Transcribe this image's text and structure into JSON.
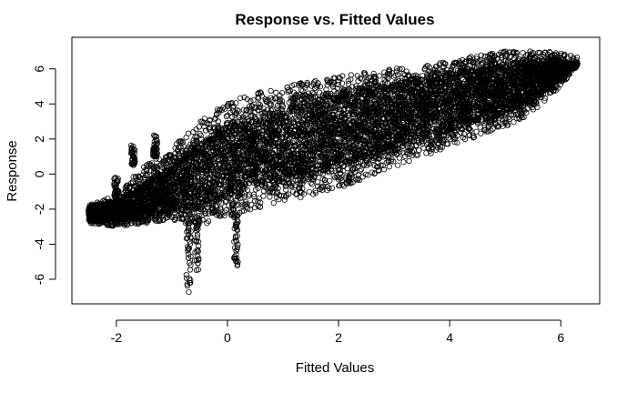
{
  "chart_data": {
    "type": "scatter",
    "title": "Response vs. Fitted Values",
    "xlabel": "Fitted Values",
    "ylabel": "Response",
    "xlim": [
      -2.8,
      6.7
    ],
    "ylim": [
      -7.4,
      7.8
    ],
    "x_ticks": [
      -2,
      0,
      2,
      4,
      6
    ],
    "y_ticks": [
      -6,
      -4,
      -2,
      0,
      2,
      4,
      6
    ],
    "x_tick_labels": [
      "-2",
      "0",
      "2",
      "4",
      "6"
    ],
    "y_tick_labels": [
      "-6",
      "-4",
      "-2",
      "0",
      "2",
      "4",
      "6"
    ],
    "marker": "open-circle",
    "marker_color": "#000000",
    "grid": false,
    "legend": "none",
    "envelope": {
      "x": [
        -2.5,
        -2.0,
        -1.5,
        -1.0,
        -0.5,
        0.0,
        0.5,
        1.0,
        2.0,
        3.0,
        4.0,
        5.0,
        5.5,
        6.0,
        6.3
      ],
      "upper": [
        -1.8,
        -1.2,
        0.5,
        1.5,
        3.0,
        4.2,
        4.6,
        5.0,
        5.6,
        6.0,
        6.5,
        7.0,
        7.1,
        6.9,
        6.7
      ],
      "lower": [
        -2.8,
        -3.0,
        -2.8,
        -2.6,
        -3.0,
        -2.4,
        -2.0,
        -1.6,
        -0.8,
        0.3,
        1.6,
        2.7,
        3.5,
        5.0,
        6.2
      ],
      "core_upper": [
        -2.0,
        -1.6,
        -0.6,
        0.5,
        1.6,
        2.6,
        3.0,
        3.6,
        4.4,
        5.0,
        5.6,
        6.1,
        6.3,
        6.3,
        6.3
      ],
      "core_lower": [
        -2.6,
        -2.6,
        -2.3,
        -2.0,
        -1.8,
        -1.2,
        -0.6,
        -0.2,
        0.6,
        1.6,
        2.6,
        3.6,
        4.3,
        5.5,
        6.3
      ]
    },
    "tails": [
      {
        "x": -0.7,
        "y_from": -2.5,
        "y_to": -7.0
      },
      {
        "x": -0.55,
        "y_from": -2.5,
        "y_to": -5.6
      },
      {
        "x": 0.15,
        "y_from": -2.3,
        "y_to": -5.3
      },
      {
        "x": -1.3,
        "y_from": 1.0,
        "y_to": 2.3
      },
      {
        "x": -1.7,
        "y_from": 0.5,
        "y_to": 1.7
      },
      {
        "x": -2.0,
        "y_from": -1.3,
        "y_to": -0.2
      }
    ]
  }
}
